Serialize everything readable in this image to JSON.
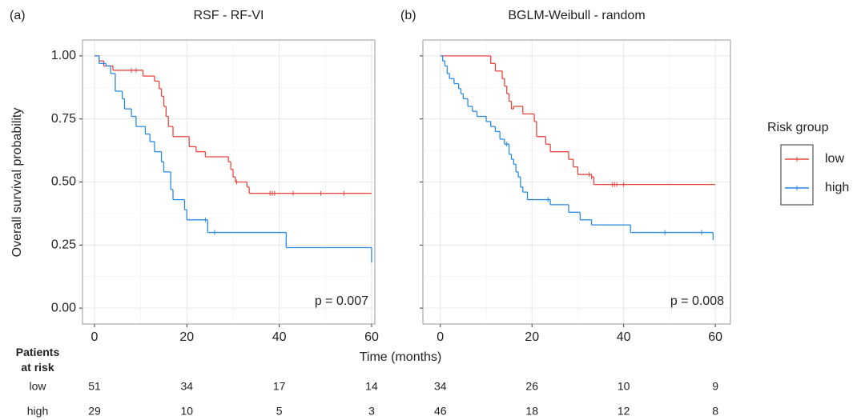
{
  "y_label": "Overall survival probability",
  "x_label": "Time (months)",
  "legend": {
    "title": "Risk group"
  },
  "risk_table": {
    "title": "Patients at risk",
    "row_labels": [
      "low",
      "high"
    ]
  },
  "chart_data": [
    {
      "type": "step",
      "panel": "(a)",
      "title": "RSF - RF-VI",
      "annotation": "p = 0.007",
      "xlim": [
        -2.6,
        60.7
      ],
      "xticks": [
        0,
        20,
        40,
        60
      ],
      "ylim": [
        -0.063,
        1.063
      ],
      "yticks": [
        {
          "value": 0,
          "label": "0.00"
        },
        {
          "value": 0.25,
          "label": "0.25"
        },
        {
          "value": 0.5,
          "label": "0.50"
        },
        {
          "value": 0.75,
          "label": "0.75"
        },
        {
          "value": 1,
          "label": "1.00"
        }
      ],
      "at_risk": [
        [
          51,
          34,
          17,
          14
        ],
        [
          29,
          10,
          5,
          3
        ]
      ],
      "series": [
        {
          "name": "low",
          "color": "#e8463f",
          "x": [
            0,
            1,
            2,
            4,
            10.5,
            13,
            14,
            14.5,
            15,
            15.5,
            16,
            17,
            20.5,
            22,
            24,
            29,
            29.5,
            30,
            30.5,
            33,
            33.5,
            60
          ],
          "values": [
            1,
            0.98,
            0.96,
            0.943,
            0.92,
            0.9,
            0.87,
            0.84,
            0.8,
            0.76,
            0.72,
            0.68,
            0.64,
            0.62,
            0.6,
            0.58,
            0.55,
            0.52,
            0.5,
            0.48,
            0.455,
            0.455
          ],
          "censored": [
            8,
            9,
            30.8,
            38,
            38.5,
            39,
            43,
            49,
            54
          ]
        },
        {
          "name": "high",
          "color": "#2a8ae2",
          "x": [
            0,
            1,
            2.5,
            3.5,
            4.5,
            6,
            6.5,
            8,
            9,
            11,
            12,
            13,
            14.5,
            15,
            16.5,
            17,
            19.5,
            20,
            24.5,
            41.5,
            60
          ],
          "values": [
            1,
            0.97,
            0.96,
            0.93,
            0.86,
            0.83,
            0.79,
            0.76,
            0.72,
            0.69,
            0.66,
            0.62,
            0.58,
            0.54,
            0.47,
            0.43,
            0.39,
            0.35,
            0.3,
            0.24,
            0.18
          ],
          "censored": [
            24,
            26
          ]
        }
      ]
    },
    {
      "type": "step",
      "panel": "(b)",
      "title": "BGLM-Weibull - random",
      "annotation": "p = 0.008",
      "xlim": [
        -3.8,
        63.3
      ],
      "xticks": [
        0,
        20,
        40,
        60
      ],
      "ylim": [
        -0.063,
        1.063
      ],
      "yticks": [
        0,
        0.25,
        0.5,
        0.75,
        1
      ],
      "at_risk": [
        [
          34,
          26,
          10,
          9
        ],
        [
          46,
          18,
          12,
          8
        ]
      ],
      "series": [
        {
          "name": "low",
          "color": "#e8463f",
          "x": [
            0,
            11,
            12,
            13.5,
            14,
            14.5,
            15,
            15.5,
            16,
            18,
            20.5,
            21,
            23,
            24,
            28,
            29,
            30,
            33,
            33.5,
            60
          ],
          "values": [
            1,
            0.97,
            0.94,
            0.91,
            0.88,
            0.85,
            0.82,
            0.79,
            0.8,
            0.77,
            0.74,
            0.68,
            0.65,
            0.62,
            0.59,
            0.56,
            0.53,
            0.52,
            0.49,
            0.49
          ],
          "censored": [
            32.5,
            33,
            37.5,
            38,
            38.5,
            40
          ]
        },
        {
          "name": "high",
          "color": "#2a8ae2",
          "x": [
            0,
            0.5,
            1,
            1.5,
            2,
            3,
            4,
            4.5,
            5,
            6,
            7,
            8,
            10,
            11,
            12,
            13,
            14,
            15,
            15.5,
            16,
            16.5,
            17,
            17.5,
            18,
            19,
            24,
            28,
            30.5,
            33,
            41.5,
            59.5
          ],
          "values": [
            1,
            0.98,
            0.96,
            0.93,
            0.91,
            0.89,
            0.87,
            0.85,
            0.83,
            0.8,
            0.78,
            0.76,
            0.74,
            0.72,
            0.7,
            0.67,
            0.65,
            0.61,
            0.59,
            0.57,
            0.54,
            0.52,
            0.48,
            0.46,
            0.43,
            0.41,
            0.38,
            0.35,
            0.33,
            0.3,
            0.27
          ],
          "censored": [
            14.5,
            23.5,
            49,
            57
          ]
        }
      ]
    }
  ]
}
